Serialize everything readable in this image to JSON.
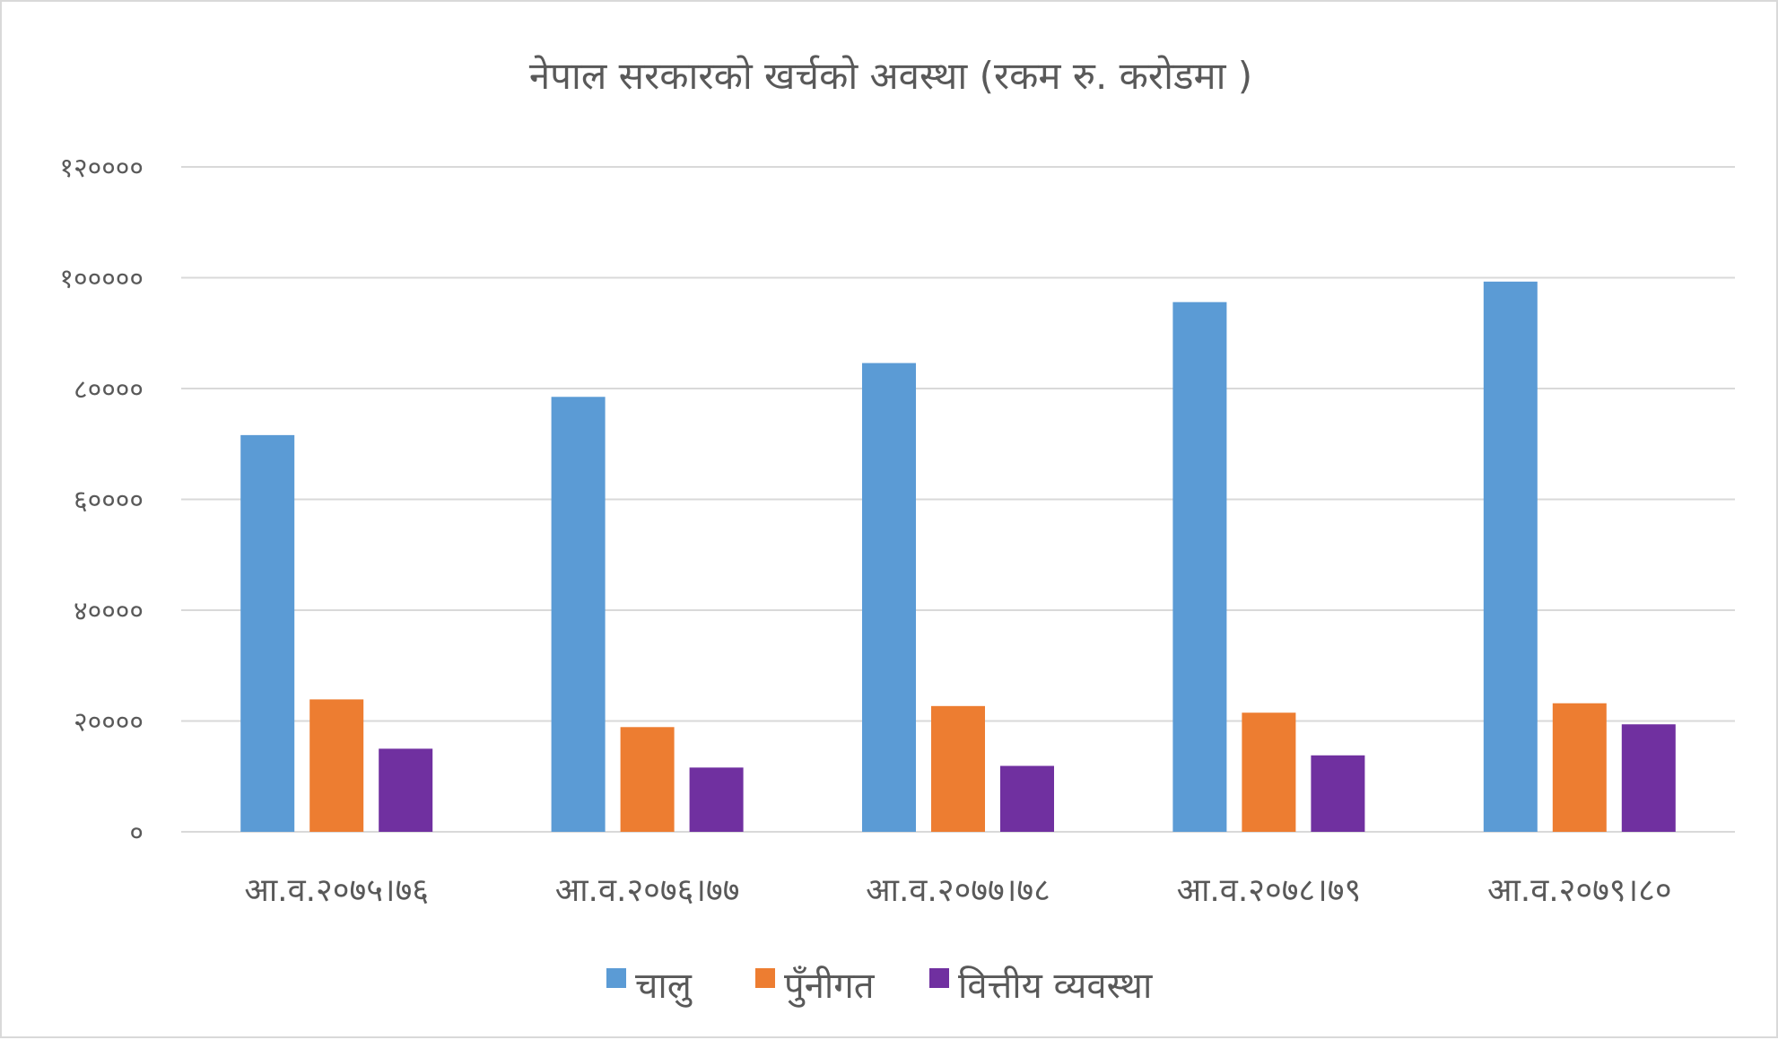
{
  "chart_data": {
    "type": "bar",
    "title": "नेपाल सरकारको खर्चको अवस्था (रकम रु. करोडमा )",
    "xlabel": "",
    "ylabel": "",
    "ylim": [
      0,
      120000
    ],
    "yticks": [
      0,
      20000,
      40000,
      60000,
      80000,
      100000,
      120000
    ],
    "ytick_labels": [
      "०",
      "२००००",
      "४००००",
      "६००००",
      "८००००",
      "१०००००",
      "१२००००"
    ],
    "grid": true,
    "legend_position": "bottom",
    "categories": [
      "आ.व.२०७५।७६",
      "आ.व.२०७६।७७",
      "आ.व.२०७७।७८",
      "आ.व.२०७८।७९",
      "आ.व.२०७९।८०"
    ],
    "series": [
      {
        "name": "चालु",
        "color": "#5b9bd5",
        "values": [
          71600,
          78500,
          84600,
          95600,
          99300
        ]
      },
      {
        "name": "पुँनीगत",
        "color": "#ed7d31",
        "values": [
          23900,
          18900,
          22700,
          21500,
          23200
        ]
      },
      {
        "name": "वित्तीय  व्यवस्था",
        "color": "#7030a0",
        "values": [
          15000,
          11600,
          11900,
          13800,
          19400
        ]
      }
    ]
  }
}
